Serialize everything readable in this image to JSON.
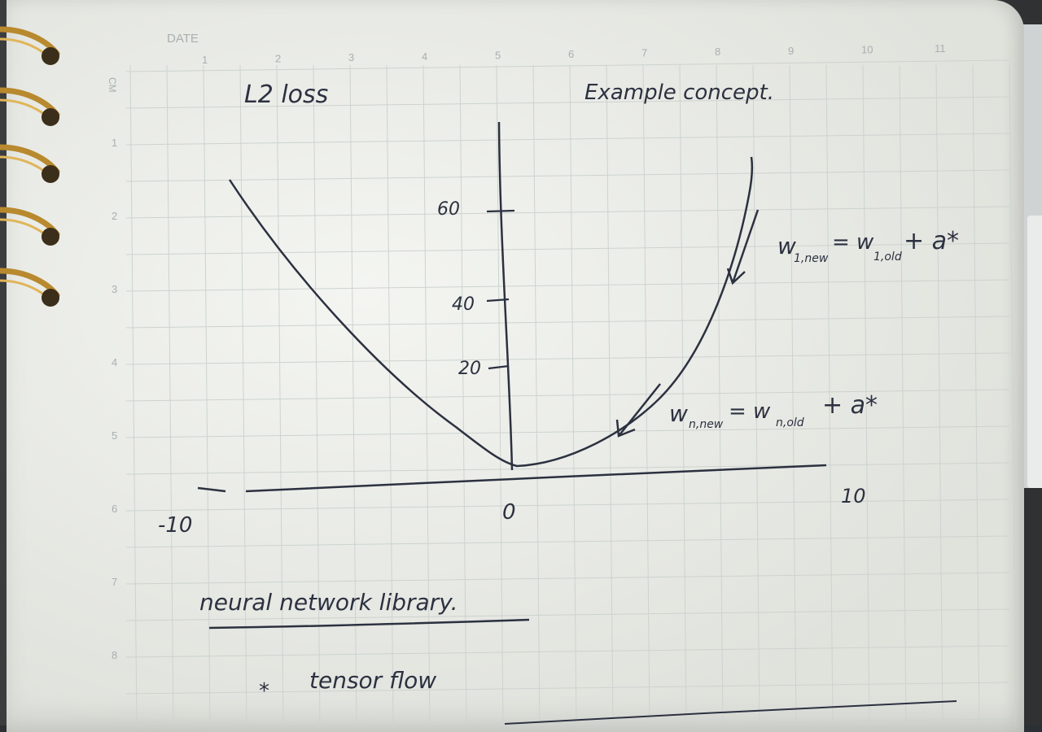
{
  "header": {
    "date_label": "DATE",
    "cm_label": "CM",
    "top_ruler": [
      "1",
      "2",
      "3",
      "4",
      "5",
      "6",
      "7",
      "8",
      "9",
      "10",
      "11"
    ],
    "side_ruler": [
      "1",
      "2",
      "3",
      "4",
      "5",
      "6",
      "7",
      "8"
    ]
  },
  "notes": {
    "title": "L2  loss",
    "example": "Example concept.",
    "y_ticks": [
      "60",
      "40",
      "20"
    ],
    "x_left": "-10",
    "x_zero": "0",
    "x_right": "10",
    "eq1_main": "w",
    "eq1_sub": "1,new",
    "eq1_rest": "= w",
    "eq1_sub2": "1,old",
    "eq1_tail": "+ a*",
    "eq2_main": "w",
    "eq2_sub": "n,new",
    "eq2_rest": "= w",
    "eq2_sub2": "n,old",
    "eq2_tail": "+ a*",
    "section": "neural network library.",
    "bullet": "*",
    "item": "tensor flow"
  },
  "colors": {
    "ink": "#2c3140",
    "grid": "#cdd3cf",
    "paper": "#eef0ea",
    "ring": "#b8892e"
  }
}
